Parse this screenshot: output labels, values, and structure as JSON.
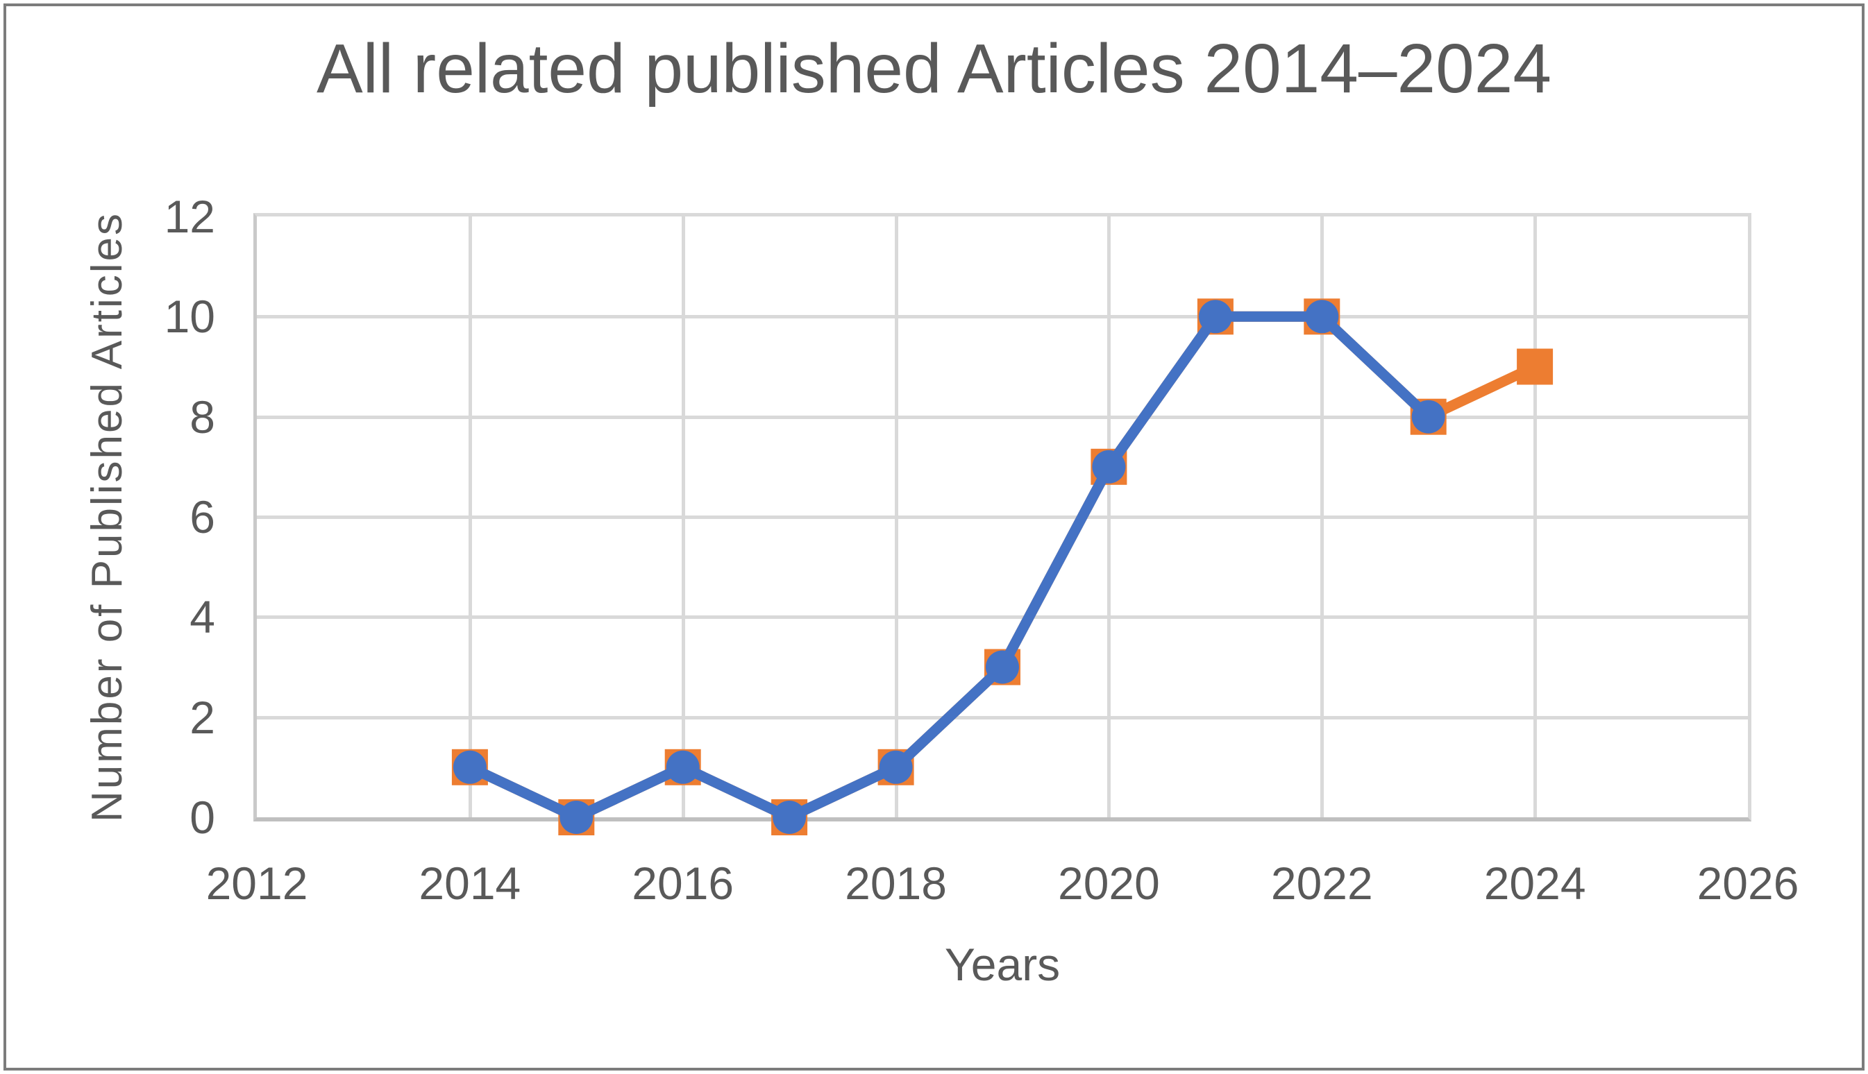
{
  "colors": {
    "series_orange": "#ED7D31",
    "series_blue": "#4472C4",
    "gridline": "#D9D9D9",
    "axis_line": "#BFBFBF",
    "text": "#595959",
    "frame_border": "#7C7C7C"
  },
  "chart_data": {
    "type": "line",
    "title": "All related published Articles 2014–2024",
    "xlabel": "Years",
    "ylabel": "Number of Published Articles",
    "xlim": [
      2012,
      2026
    ],
    "ylim": [
      0,
      12
    ],
    "x_ticks": [
      2012,
      2014,
      2016,
      2018,
      2020,
      2022,
      2024,
      2026
    ],
    "y_ticks": [
      0,
      2,
      4,
      6,
      8,
      10,
      12
    ],
    "grid": true,
    "legend": "none",
    "series": [
      {
        "name": "all-articles-orange",
        "color": "#ED7D31",
        "marker": "square",
        "x": [
          2014,
          2015,
          2016,
          2017,
          2018,
          2019,
          2020,
          2021,
          2022,
          2023,
          2024
        ],
        "values": [
          1,
          0,
          1,
          0,
          1,
          3,
          7,
          10,
          10,
          8,
          9
        ]
      },
      {
        "name": "published-articles-blue",
        "color": "#4472C4",
        "marker": "circle",
        "x": [
          2014,
          2015,
          2016,
          2017,
          2018,
          2019,
          2020,
          2021,
          2022,
          2023
        ],
        "values": [
          1,
          0,
          1,
          0,
          1,
          3,
          7,
          10,
          10,
          8
        ]
      }
    ]
  }
}
